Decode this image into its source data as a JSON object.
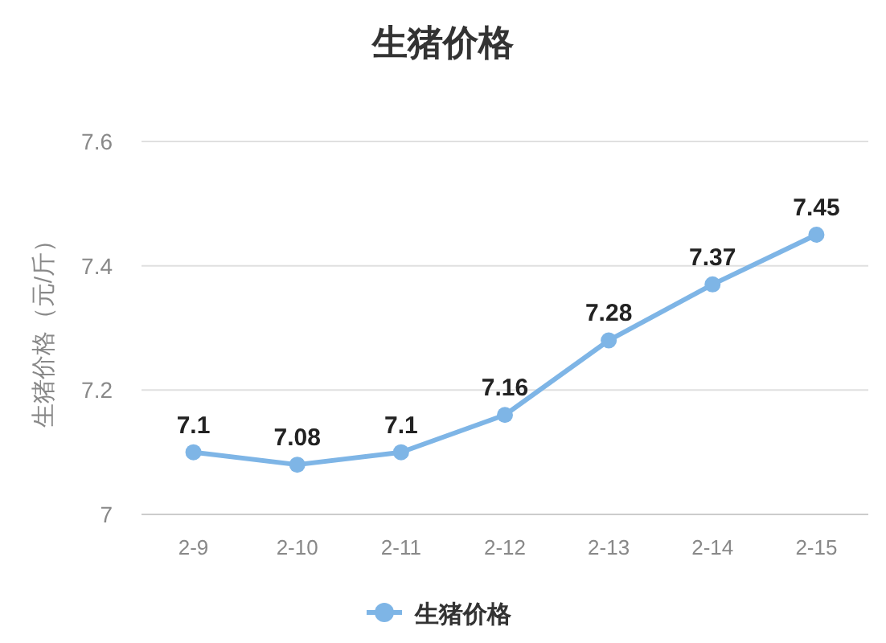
{
  "chart_data": {
    "type": "line",
    "title": "生猪价格",
    "ylabel": "生猪价格（元/斤）",
    "categories": [
      "2-9",
      "2-10",
      "2-11",
      "2-12",
      "2-13",
      "2-14",
      "2-15"
    ],
    "series": [
      {
        "name": "生猪价格",
        "color": "#7eb5e6",
        "values": [
          7.1,
          7.08,
          7.1,
          7.16,
          7.28,
          7.37,
          7.45
        ]
      }
    ],
    "ylim": [
      7,
      7.6
    ],
    "yticks": [
      7,
      7.2,
      7.4,
      7.6
    ],
    "grid": "y",
    "legend": "bottom",
    "marker": "circle",
    "line_style": "solid",
    "data_labels": true
  }
}
